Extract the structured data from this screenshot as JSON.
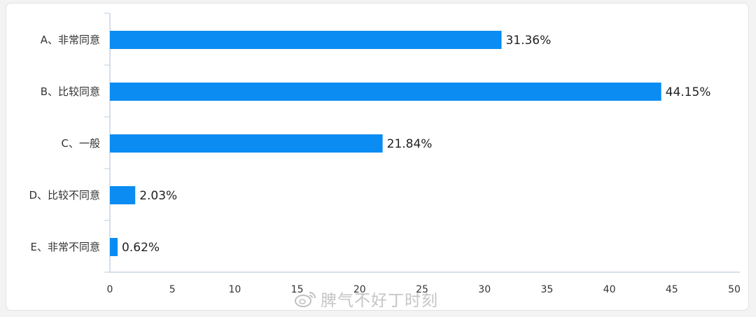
{
  "chart_data": {
    "type": "bar",
    "orientation": "horizontal",
    "categories": [
      "A、非常同意",
      "B、比较同意",
      "C、一般",
      "D、比较不同意",
      "E、非常不同意"
    ],
    "values": [
      31.36,
      44.15,
      21.84,
      2.03,
      0.62
    ],
    "data_labels": [
      "31.36%",
      "44.15%",
      "21.84%",
      "2.03%",
      "0.62%"
    ],
    "x_ticks": [
      0,
      5,
      10,
      15,
      20,
      25,
      30,
      35,
      40,
      45,
      50
    ],
    "xlim": [
      0,
      50
    ],
    "grid": false,
    "legend": "none",
    "bar_color": "#0a8cf2",
    "axis_color": "#c8d4e3"
  },
  "watermark": {
    "icon": "weibo-icon",
    "text": "脾气不好丁时刻"
  }
}
